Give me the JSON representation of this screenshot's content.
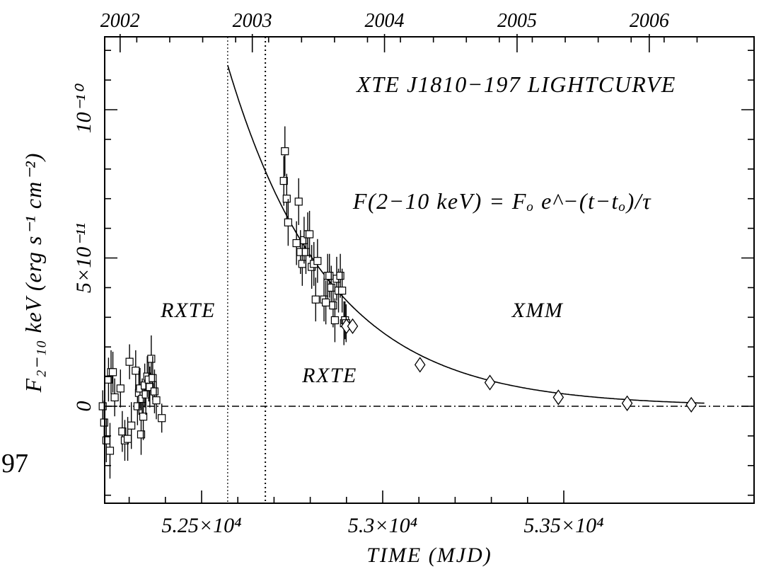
{
  "page_number": "97",
  "chart_data": {
    "type": "scatter",
    "title": "XTE J1810−197 LIGHTCURVE",
    "xlabel": "TIME (MJD)",
    "ylabel": "F₂₋₁₀ keV (erg s⁻¹ cm⁻²)",
    "xlim": [
      52180,
      53395
    ],
    "ylim": [
      -3.3e-11,
      1.15e-10
    ],
    "x_ticks": [
      {
        "value": 52500,
        "label": "5.25×10⁴"
      },
      {
        "value": 53000,
        "label": "5.3×10⁴"
      },
      {
        "value": 53500,
        "label": "5.35×10⁴"
      }
    ],
    "y_ticks": [
      {
        "value": 0,
        "label": "0"
      },
      {
        "value": 5e-11,
        "label": "5×10⁻¹¹"
      },
      {
        "value": 1e-10,
        "label": "10⁻¹⁰"
      }
    ],
    "top_axis": {
      "label_years": [
        {
          "mjd": 52275,
          "label": "2002"
        },
        {
          "mjd": 52640,
          "label": "2003"
        },
        {
          "mjd": 53005,
          "label": "2004"
        },
        {
          "mjd": 53371,
          "label": "2005"
        },
        {
          "mjd": 53736,
          "label": "2006"
        }
      ]
    },
    "annotations": [
      {
        "text": "XTE J1810−197 LIGHTCURVE",
        "x": 53000,
        "y": 1.08e-10
      },
      {
        "text": "F(2−10 keV) = Fₒ e^−(t−tₒ)/τ",
        "x": 53000,
        "y": 7e-11
      },
      {
        "text": "RXTE",
        "x": 52340,
        "y": 3.2e-11
      },
      {
        "text": "RXTE",
        "x": 52690,
        "y": 1.05e-11
      },
      {
        "text": "XMM",
        "x": 53275,
        "y": 3.2e-11
      }
    ],
    "vertical_lines": [
      {
        "x": 52572,
        "style": "dotted"
      },
      {
        "x": 52676,
        "style": "dotted"
      }
    ],
    "baseline": {
      "y": 0,
      "style": "dash-dot"
    },
    "series": [
      {
        "name": "RXTE",
        "marker": "square",
        "points": [
          [
            52227,
            0.0,
            3e-12
          ],
          [
            52231,
            -5.5e-12,
            5e-12
          ],
          [
            52237,
            -1.15e-11,
            5e-12
          ],
          [
            52243,
            9e-12,
            5e-12
          ],
          [
            52247,
            -1.5e-11,
            7e-12
          ],
          [
            52250,
            1.15e-11,
            5e-12
          ],
          [
            52255,
            1.15e-11,
            4.5e-12
          ],
          [
            52260,
            3e-12,
            4e-12
          ],
          [
            52276,
            6e-12,
            4e-12
          ],
          [
            52281,
            -8.5e-12,
            4.5e-12
          ],
          [
            52288,
            -1.15e-11,
            4.5e-12
          ],
          [
            52296,
            -1.1e-11,
            5e-12
          ],
          [
            52301,
            1.5e-11,
            3.5e-12
          ],
          [
            52306,
            -6.5e-12,
            5.5e-12
          ],
          [
            52318,
            1.2e-11,
            4.5e-12
          ],
          [
            52323,
            0.0,
            4e-12
          ],
          [
            52327,
            4.5e-12,
            5e-12
          ],
          [
            52330,
            6e-12,
            4.5e-12
          ],
          [
            52333,
            -9.5e-12,
            4.5e-12
          ],
          [
            52336,
            2.5e-12,
            4.5e-12
          ],
          [
            52339,
            -3.5e-12,
            5.5e-12
          ],
          [
            52343,
            7e-12,
            5e-12
          ],
          [
            52346,
            4e-12,
            4.5e-12
          ],
          [
            52350,
            1e-11,
            4.5e-12
          ],
          [
            52354,
            9e-12,
            5e-12
          ],
          [
            52357,
            6.5e-12,
            4.5e-12
          ],
          [
            52361,
            1.6e-11,
            5.5e-12
          ],
          [
            52365,
            9.5e-12,
            5e-12
          ],
          [
            52370,
            5e-12,
            5e-12
          ],
          [
            52375,
            2e-12,
            4e-12
          ],
          [
            52390,
            -4e-12,
            2.5e-12
          ],
          [
            52727,
            7.6e-11,
            6e-12
          ],
          [
            52730,
            8.6e-11,
            6e-12
          ],
          [
            52735,
            7e-11,
            6e-12
          ],
          [
            52739,
            6.2e-11,
            5.5e-12
          ],
          [
            52762,
            5.5e-11,
            5e-12
          ],
          [
            52768,
            6.9e-11,
            5.5e-12
          ],
          [
            52773,
            5.2e-11,
            5e-12
          ],
          [
            52778,
            4.8e-11,
            5e-12
          ],
          [
            52783,
            5.6e-11,
            5.5e-12
          ],
          [
            52788,
            5.2e-11,
            5e-12
          ],
          [
            52793,
            5.8e-11,
            5e-12
          ],
          [
            52798,
            5.8e-11,
            5.5e-12
          ],
          [
            52804,
            4.7e-11,
            5e-12
          ],
          [
            52810,
            4.8e-11,
            5e-12
          ],
          [
            52815,
            3.6e-11,
            5e-12
          ],
          [
            52820,
            4.9e-11,
            5e-12
          ],
          [
            52838,
            3.6e-11,
            5e-12
          ],
          [
            52843,
            3.5e-11,
            5e-12
          ],
          [
            52848,
            4.4e-11,
            5e-12
          ],
          [
            52853,
            4.4e-11,
            5e-12
          ],
          [
            52858,
            4e-11,
            5e-12
          ],
          [
            52863,
            3.4e-11,
            5e-12
          ],
          [
            52868,
            2.9e-11,
            5e-12
          ],
          [
            52873,
            4.3e-11,
            5e-12
          ],
          [
            52878,
            3.9e-11,
            5e-12
          ],
          [
            52883,
            4.4e-11,
            5e-12
          ],
          [
            52888,
            3.9e-11,
            5e-12
          ],
          [
            52893,
            2.8e-11,
            5e-12
          ],
          [
            52896,
            2.9e-11,
            4e-12
          ],
          [
            52899,
            2.8e-11,
            4e-12
          ]
        ]
      },
      {
        "name": "XMM",
        "marker": "diamond",
        "points": [
          [
            52900,
            2.7e-11,
            1e-12
          ],
          [
            52917,
            2.7e-11,
            1e-12
          ],
          [
            53103,
            1.4e-11,
            1e-12
          ],
          [
            53296,
            8e-12,
            1e-12
          ],
          [
            53485,
            3e-12,
            1e-12
          ],
          [
            53675,
            1e-12,
            1e-12
          ],
          [
            53852,
            5e-13,
            1e-12
          ]
        ]
      }
    ],
    "fit": {
      "type": "exponential",
      "F0": 1.15e-10,
      "t0": 52572,
      "tau": 280,
      "x_range": [
        52572,
        53890
      ]
    }
  }
}
